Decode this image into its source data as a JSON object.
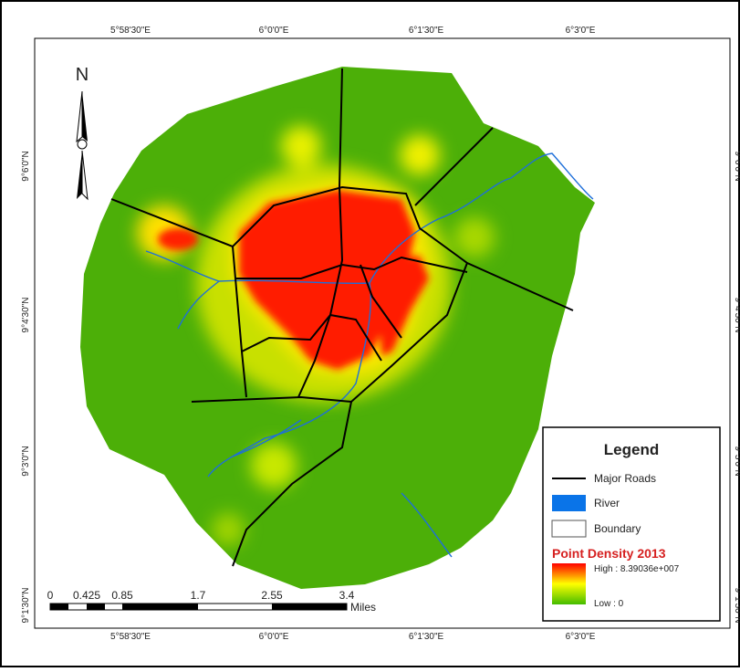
{
  "map": {
    "grid": {
      "longitudes": [
        "5°58'30\"E",
        "6°0'0\"E",
        "6°1'30\"E",
        "6°3'0\"E"
      ],
      "latitudes": [
        "9°6'0\"N",
        "9°4'30\"N",
        "9°3'0\"N",
        "9°1'30\"N"
      ]
    },
    "north_arrow": "N",
    "legend": {
      "title": "Legend",
      "items": [
        "Major Roads",
        "River",
        "Boundary"
      ],
      "density": {
        "title": "Point Density 2013",
        "high": "High : 8.39036e+007",
        "low": "Low : 0"
      }
    },
    "scale_bar": {
      "ticks": [
        "0",
        "0.425",
        "0.85",
        "1.7",
        "2.55",
        "3.4"
      ],
      "unit": "Miles"
    }
  }
}
